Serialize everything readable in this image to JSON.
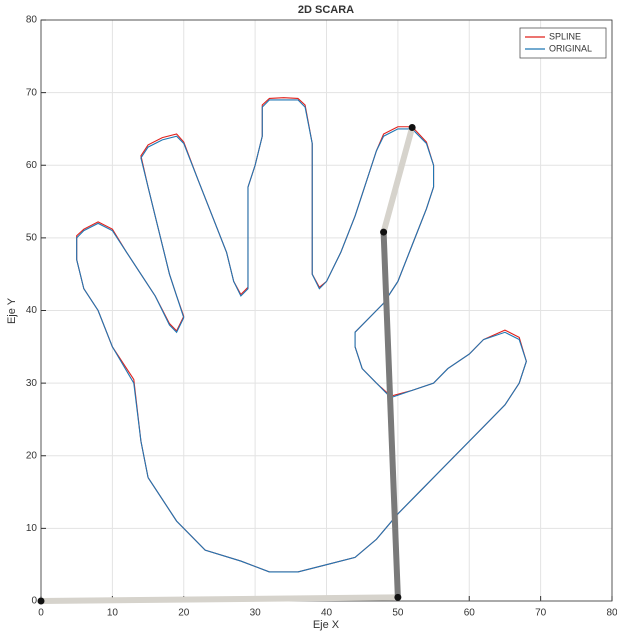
{
  "chart_data": {
    "type": "line",
    "title": "2D SCARA",
    "x_label": "Eje X",
    "y_label": "Eje Y",
    "xlim": [
      0,
      80
    ],
    "ylim": [
      0,
      80
    ],
    "xticks": [
      0,
      10,
      20,
      30,
      40,
      50,
      60,
      70,
      80
    ],
    "yticks": [
      0,
      10,
      20,
      30,
      40,
      50,
      60,
      70,
      80
    ],
    "grid": true,
    "legend": "upper right",
    "series": [
      {
        "name": "SPLINE",
        "color": "#e0201b",
        "x": [
          15,
          14,
          13,
          10,
          8,
          6,
          5,
          5,
          6,
          8,
          10,
          12,
          14,
          16,
          18,
          19,
          20,
          19,
          18,
          17,
          16,
          15,
          14,
          15,
          17,
          19,
          20,
          22,
          24,
          26,
          27,
          28,
          29,
          29,
          29,
          30,
          31,
          31,
          32,
          34,
          36,
          37,
          38,
          38,
          38,
          39,
          40,
          42,
          44,
          45,
          46,
          47,
          48,
          50,
          52,
          54,
          55,
          55,
          54,
          52,
          50,
          48,
          46,
          44,
          44,
          45,
          47,
          49,
          52,
          55,
          57,
          60,
          62,
          65,
          67,
          68,
          67,
          65,
          62,
          59,
          56,
          53,
          50,
          47,
          44,
          40,
          36,
          32,
          28,
          23,
          21,
          19,
          17,
          15
        ],
        "values": [
          17,
          22,
          30.5,
          35,
          40,
          43,
          47,
          50.3,
          51.2,
          52.2,
          51.2,
          48,
          45,
          42,
          38.2,
          37.2,
          39.2,
          42,
          45,
          49,
          53,
          57,
          61.3,
          62.8,
          63.8,
          64.3,
          63.2,
          58,
          53,
          48,
          44,
          42.2,
          43.2,
          50,
          57,
          60,
          64,
          68.3,
          69.2,
          69.3,
          69.2,
          68.3,
          63,
          55,
          45,
          43.2,
          44,
          48,
          53,
          56,
          59,
          62,
          64.3,
          65.3,
          65.3,
          63.2,
          60,
          57,
          54,
          49,
          44,
          41,
          39,
          37,
          35,
          32,
          30,
          28.2,
          29,
          30,
          32,
          34,
          36,
          37.3,
          36.3,
          33,
          30,
          27,
          24,
          21,
          18,
          15,
          12,
          8.5,
          6,
          5,
          4,
          4,
          5.5,
          7,
          9,
          11,
          14,
          17
        ]
      },
      {
        "name": "ORIGINAL",
        "color": "#1f77b4",
        "x": [
          15,
          14,
          13,
          10,
          8,
          6,
          5,
          5,
          6,
          8,
          10,
          12,
          14,
          16,
          18,
          19,
          20,
          19,
          18,
          17,
          16,
          15,
          14,
          15,
          17,
          19,
          20,
          22,
          24,
          26,
          27,
          28,
          29,
          29,
          29,
          30,
          31,
          31,
          32,
          34,
          36,
          37,
          38,
          38,
          38,
          39,
          40,
          42,
          44,
          45,
          46,
          47,
          48,
          50,
          52,
          54,
          55,
          55,
          54,
          52,
          50,
          48,
          46,
          44,
          44,
          45,
          47,
          49,
          52,
          55,
          57,
          60,
          62,
          65,
          67,
          68,
          67,
          65,
          62,
          59,
          56,
          53,
          50,
          47,
          44,
          40,
          36,
          32,
          28,
          23,
          21,
          19,
          17,
          15
        ],
        "values": [
          17,
          22,
          30,
          35,
          40,
          43,
          47,
          50,
          51,
          52,
          51,
          48,
          45,
          42,
          38,
          37,
          39,
          42,
          45,
          49,
          53,
          57,
          61,
          62.5,
          63.5,
          64,
          63,
          58,
          53,
          48,
          44,
          42,
          43,
          50,
          57,
          60,
          64,
          68,
          69,
          69,
          69,
          68,
          63,
          55,
          45,
          43,
          44,
          48,
          53,
          56,
          59,
          62,
          64,
          65,
          65,
          63,
          60,
          57,
          54,
          49,
          44,
          41,
          39,
          37,
          35,
          32,
          30,
          28,
          29,
          30,
          32,
          34,
          36,
          37,
          36,
          33,
          30,
          27,
          24,
          21,
          18,
          15,
          12,
          8.5,
          6,
          5,
          4,
          4,
          5.5,
          7,
          9,
          11,
          14,
          17
        ]
      }
    ],
    "arm": {
      "x": [
        0,
        50,
        48,
        52
      ],
      "y": [
        0,
        0.5,
        50.8,
        65.2
      ],
      "colors": [
        "#d6d3cc",
        "#7a7a7a",
        "#d6d3cc"
      ],
      "joint_color": "#111111"
    }
  }
}
